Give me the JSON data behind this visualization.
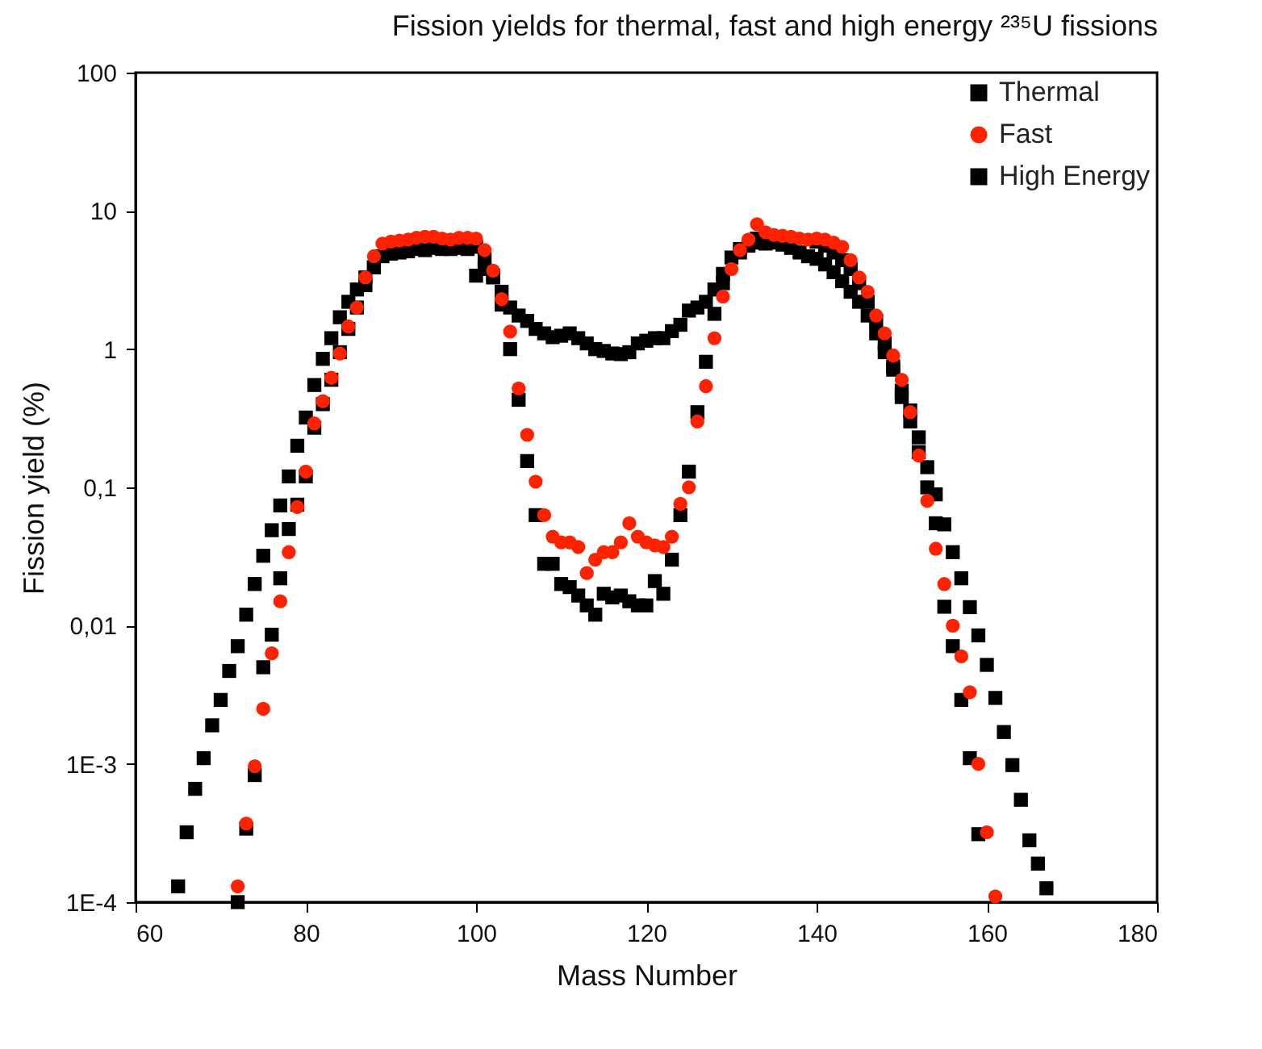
{
  "chart_data": {
    "type": "scatter",
    "title": "Fission yields for thermal, fast and high energy ²³⁵U fissions",
    "xlabel": "Mass Number",
    "ylabel": "Fission yield (%)",
    "xlim": [
      60,
      180
    ],
    "xticks": [
      60,
      80,
      100,
      120,
      140,
      160,
      180
    ],
    "ylim": [
      0.0001,
      100
    ],
    "yticks": [
      {
        "value": 0.0001,
        "label": "1E-4"
      },
      {
        "value": 0.001,
        "label": "1E-3"
      },
      {
        "value": 0.01,
        "label": "0,01"
      },
      {
        "value": 0.1,
        "label": "0,1"
      },
      1,
      10,
      100
    ],
    "log": true,
    "legend": "top right",
    "series": [
      {
        "name": "Thermal",
        "color": "#000000",
        "marker": "square",
        "x": [
          72,
          73,
          74,
          75,
          76,
          77,
          78,
          79,
          80,
          81,
          82,
          83,
          84,
          85,
          86,
          87,
          88,
          89,
          100,
          101,
          102,
          103,
          104,
          105,
          106,
          107,
          108,
          109,
          110,
          111,
          112,
          113,
          114,
          115,
          116,
          117,
          118,
          119,
          120,
          121,
          122,
          123,
          124,
          125,
          126,
          127,
          128,
          129,
          131,
          132,
          133,
          140,
          141,
          142,
          143,
          144,
          145,
          146,
          147,
          148,
          149,
          150,
          151,
          152,
          153,
          154,
          155,
          156,
          157,
          158,
          159
        ],
        "values": [
          0.0001,
          0.00034,
          0.00083,
          0.005,
          0.0086,
          0.022,
          0.05,
          0.075,
          0.12,
          0.27,
          0.4,
          0.6,
          0.95,
          1.4,
          2.0,
          2.9,
          3.9,
          4.7,
          5.5,
          4.5,
          3.4,
          2.1,
          1.0,
          0.43,
          0.155,
          0.063,
          0.028,
          0.028,
          0.02,
          0.019,
          0.0165,
          0.014,
          0.012,
          0.017,
          0.016,
          0.0165,
          0.015,
          0.014,
          0.014,
          0.021,
          0.017,
          0.03,
          0.063,
          0.13,
          0.35,
          0.81,
          1.8,
          3.0,
          5.0,
          5.6,
          6.3,
          6.0,
          5.6,
          5.0,
          4.4,
          3.8,
          3.0,
          2.2,
          1.6,
          1.1,
          0.75,
          0.45,
          0.3,
          0.18,
          0.1,
          0.055,
          0.0137,
          0.0071,
          0.0029,
          0.0011,
          0.00031
        ]
      },
      {
        "name": "Fast",
        "color": "#ff2200",
        "marker": "circle",
        "x": [
          72,
          73,
          74,
          75,
          76,
          77,
          78,
          79,
          80,
          81,
          82,
          83,
          84,
          85,
          86,
          87,
          88,
          89,
          90,
          91,
          92,
          93,
          94,
          95,
          96,
          97,
          98,
          99,
          100,
          101,
          102,
          103,
          104,
          105,
          106,
          107,
          108,
          109,
          110,
          111,
          112,
          113,
          114,
          115,
          116,
          117,
          118,
          119,
          120,
          121,
          122,
          123,
          124,
          125,
          126,
          127,
          128,
          129,
          130,
          131,
          132,
          133,
          134,
          135,
          136,
          137,
          138,
          139,
          140,
          141,
          142,
          143,
          144,
          145,
          146,
          147,
          148,
          149,
          150,
          151,
          152,
          153,
          154,
          155,
          156,
          157,
          158,
          159,
          160,
          161
        ],
        "values": [
          0.00013,
          0.00037,
          0.00096,
          0.0025,
          0.0063,
          0.015,
          0.034,
          0.072,
          0.13,
          0.29,
          0.42,
          0.62,
          0.93,
          1.46,
          2.0,
          3.3,
          4.7,
          5.8,
          6.0,
          6.1,
          6.2,
          6.4,
          6.5,
          6.5,
          6.3,
          6.2,
          6.4,
          6.4,
          6.3,
          5.2,
          3.7,
          2.3,
          1.34,
          0.52,
          0.24,
          0.11,
          0.063,
          0.044,
          0.04,
          0.04,
          0.037,
          0.024,
          0.03,
          0.034,
          0.034,
          0.04,
          0.055,
          0.044,
          0.04,
          0.038,
          0.037,
          0.044,
          0.076,
          0.1,
          0.3,
          0.54,
          1.2,
          2.4,
          3.8,
          5.2,
          6.2,
          8.0,
          7.0,
          6.7,
          6.6,
          6.5,
          6.3,
          6.2,
          6.3,
          6.2,
          5.9,
          5.5,
          4.4,
          3.3,
          2.6,
          1.75,
          1.3,
          0.9,
          0.6,
          0.35,
          0.17,
          0.08,
          0.036,
          0.02,
          0.01,
          0.006,
          0.0033,
          0.001,
          0.00032,
          0.00011
        ]
      },
      {
        "name": "High Energy",
        "color": "#000000",
        "marker": "square",
        "x": [
          65,
          66,
          67,
          68,
          69,
          70,
          71,
          72,
          73,
          74,
          75,
          76,
          77,
          78,
          79,
          80,
          81,
          82,
          83,
          84,
          85,
          86,
          87,
          88,
          90,
          91,
          92,
          93,
          94,
          95,
          96,
          97,
          98,
          99,
          100,
          101,
          102,
          103,
          104,
          105,
          106,
          107,
          108,
          109,
          110,
          111,
          112,
          113,
          114,
          115,
          116,
          117,
          118,
          119,
          120,
          121,
          122,
          123,
          124,
          125,
          126,
          127,
          128,
          129,
          130,
          131,
          133,
          134,
          135,
          136,
          137,
          138,
          139,
          140,
          141,
          142,
          143,
          144,
          145,
          146,
          147,
          148,
          149,
          150,
          151,
          152,
          153,
          154,
          155,
          156,
          157,
          158,
          159,
          160,
          161,
          162,
          163,
          164,
          165,
          166,
          167
        ],
        "values": [
          0.00013,
          0.00032,
          0.00066,
          0.0011,
          0.0019,
          0.0029,
          0.0047,
          0.0071,
          0.012,
          0.02,
          0.032,
          0.049,
          0.074,
          0.12,
          0.2,
          0.32,
          0.55,
          0.85,
          1.2,
          1.7,
          2.2,
          2.7,
          3.3,
          3.9,
          4.9,
          5.0,
          5.1,
          5.3,
          5.2,
          5.4,
          5.3,
          5.3,
          5.4,
          5.3,
          3.4,
          3.8,
          3.3,
          2.6,
          2.0,
          1.75,
          1.6,
          1.4,
          1.3,
          1.22,
          1.25,
          1.3,
          1.2,
          1.1,
          1.0,
          0.97,
          0.93,
          0.92,
          0.95,
          1.1,
          1.15,
          1.2,
          1.2,
          1.35,
          1.5,
          1.9,
          2.0,
          2.2,
          2.7,
          3.5,
          4.6,
          5.3,
          5.9,
          5.8,
          5.9,
          5.7,
          5.4,
          5.0,
          4.7,
          4.5,
          4.1,
          3.6,
          3.1,
          2.6,
          2.2,
          1.75,
          1.3,
          0.95,
          0.71,
          0.5,
          0.36,
          0.23,
          0.14,
          0.089,
          0.054,
          0.034,
          0.022,
          0.0136,
          0.0085,
          0.0052,
          0.003,
          0.0017,
          0.00098,
          0.00055,
          0.00028,
          0.00019,
          0.000126
        ]
      }
    ]
  }
}
